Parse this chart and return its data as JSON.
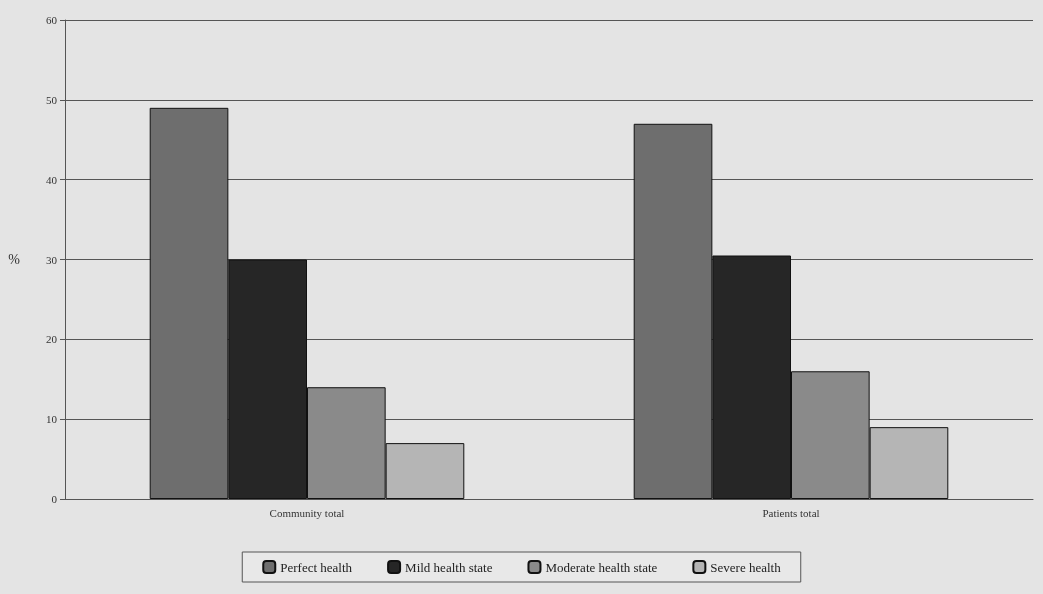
{
  "chart_data": {
    "type": "bar",
    "ylabel": "%",
    "categories": [
      "Community total",
      "Patients total"
    ],
    "series": [
      {
        "name": "Perfect health",
        "color": "#6e6e6e",
        "values": [
          49,
          47
        ]
      },
      {
        "name": "Mild health state",
        "color": "#262626",
        "values": [
          30,
          30.5
        ]
      },
      {
        "name": "Moderate health state",
        "color": "#8a8a8a",
        "values": [
          14,
          16
        ]
      },
      {
        "name": "Severe health",
        "color": "#b5b5b5",
        "values": [
          7,
          9
        ]
      }
    ],
    "ylim": [
      0,
      60
    ],
    "yticks": [
      0,
      10,
      20,
      30,
      40,
      50,
      60
    ],
    "grid": "y",
    "legend": "bottom"
  }
}
